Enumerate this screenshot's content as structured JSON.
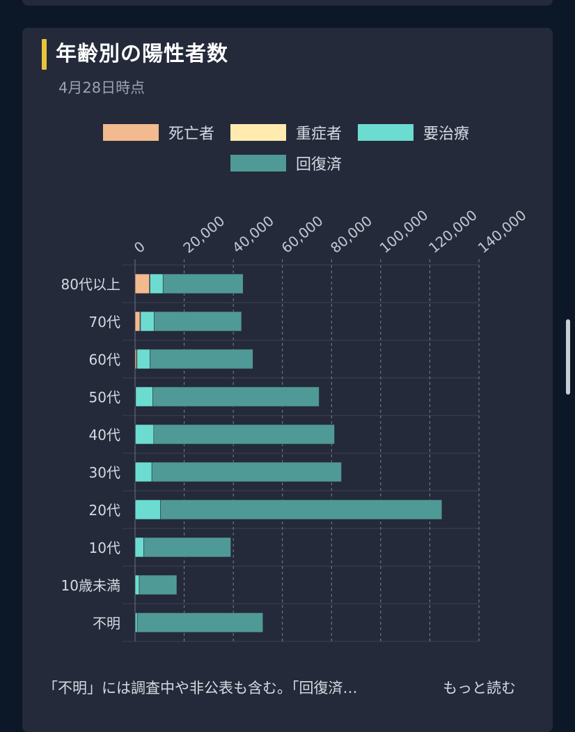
{
  "header": {
    "title": "年齢別の陽性者数",
    "subtitle": "4月28日時点"
  },
  "colors": {
    "accent": "#e7c43c",
    "deceased": "#f2ba8e",
    "severe": "#ffeab0",
    "treatment": "#6ddcd0",
    "recovered": "#4f9a96"
  },
  "chart_data": {
    "type": "bar",
    "orientation": "horizontal",
    "stacked": true,
    "categories": [
      "80代以上",
      "70代",
      "60代",
      "50代",
      "40代",
      "30代",
      "20代",
      "10代",
      "10歳未満",
      "不明"
    ],
    "series": [
      {
        "name": "死亡者",
        "color": "#f2ba8e",
        "values": [
          5800,
          2000,
          600,
          150,
          50,
          20,
          10,
          0,
          0,
          50
        ]
      },
      {
        "name": "重症者",
        "color": "#ffeab0",
        "values": [
          300,
          250,
          200,
          100,
          50,
          20,
          10,
          0,
          0,
          20
        ]
      },
      {
        "name": "要治療",
        "color": "#6ddcd0",
        "values": [
          5300,
          5500,
          5300,
          7000,
          7500,
          6800,
          10300,
          3500,
          1700,
          800
        ]
      },
      {
        "name": "回復済",
        "color": "#4f9a96",
        "values": [
          32600,
          35600,
          41900,
          67700,
          73600,
          77200,
          114600,
          35500,
          15300,
          51200
        ]
      }
    ],
    "xlim": [
      0,
      140000
    ],
    "xticks": [
      "0",
      "20,000",
      "40,000",
      "60,000",
      "80,000",
      "100,000",
      "120,000",
      "140,000"
    ],
    "grid": true,
    "legend_position": "top"
  },
  "footer": {
    "note": "「不明」には調査中や非公表も含む。「回復済…",
    "more_label": "もっと読む"
  }
}
